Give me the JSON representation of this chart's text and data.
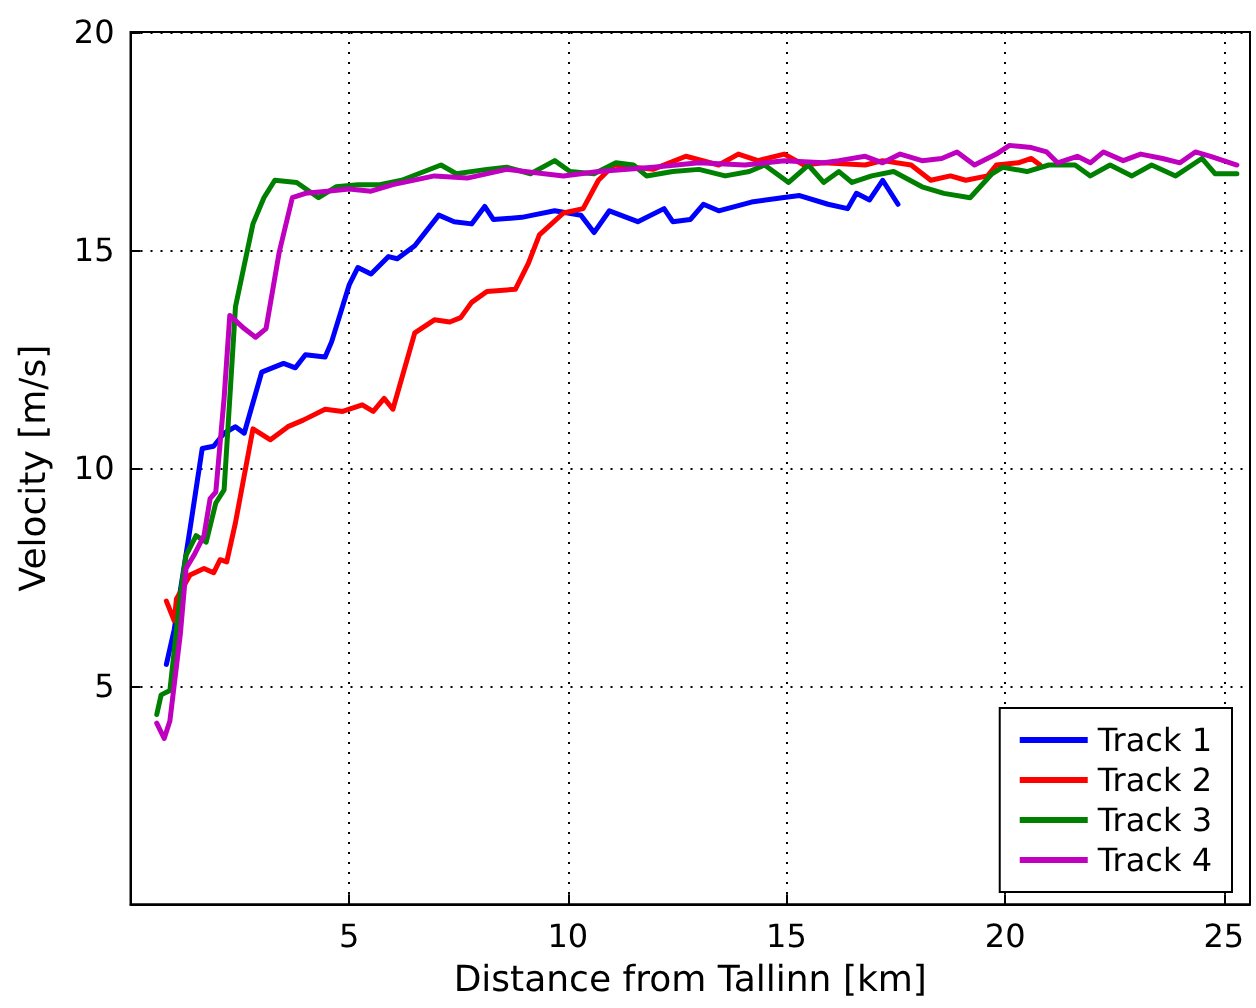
{
  "chart_data": {
    "type": "line",
    "xlabel": "Distance from Tallinn [km]",
    "ylabel": "Velocity [m/s]",
    "xlim": [
      0,
      25.6
    ],
    "xticks": [
      5,
      10,
      15,
      20,
      25
    ],
    "ylim": [
      0,
      20
    ],
    "yticks": [
      5,
      10,
      15,
      20
    ],
    "grid": true,
    "legend": "bottom right",
    "marker": "none",
    "line_style": "solid",
    "series": [
      {
        "name": "Track 1",
        "color": "#0000ff",
        "x": [
          0.82,
          1.0,
          1.36,
          1.64,
          1.9,
          2.14,
          2.4,
          2.6,
          3.0,
          3.5,
          3.77,
          4.0,
          4.45,
          4.6,
          5.0,
          5.2,
          5.5,
          5.9,
          6.1,
          6.5,
          7.05,
          7.4,
          7.8,
          8.1,
          8.3,
          8.95,
          9.2,
          9.7,
          10.3,
          10.6,
          10.95,
          11.6,
          12.2,
          12.4,
          12.8,
          13.1,
          13.45,
          14.2,
          14.9,
          15.3,
          15.95,
          16.4,
          16.6,
          16.9,
          17.2,
          17.55
        ],
        "values": [
          5.5,
          6.3,
          8.6,
          10.45,
          10.5,
          10.8,
          10.95,
          10.8,
          12.2,
          12.4,
          12.3,
          12.6,
          12.55,
          12.9,
          14.2,
          14.6,
          14.45,
          14.85,
          14.8,
          15.1,
          15.8,
          15.65,
          15.6,
          16.0,
          15.7,
          15.75,
          15.8,
          15.9,
          15.8,
          15.4,
          15.9,
          15.65,
          15.95,
          15.65,
          15.7,
          16.05,
          15.9,
          16.1,
          16.2,
          16.25,
          16.05,
          15.95,
          16.3,
          16.15,
          16.6,
          16.05
        ]
      },
      {
        "name": "Track 2",
        "color": "#ff0000",
        "x": [
          0.82,
          1.0,
          1.05,
          1.36,
          1.68,
          1.9,
          2.05,
          2.2,
          2.4,
          2.8,
          3.2,
          3.6,
          3.95,
          4.45,
          4.85,
          5.3,
          5.55,
          5.8,
          6.0,
          6.5,
          6.95,
          7.3,
          7.55,
          7.8,
          8.15,
          8.8,
          9.1,
          9.35,
          9.9,
          10.35,
          10.7,
          11.05,
          11.95,
          12.7,
          13.45,
          13.9,
          14.35,
          14.95,
          15.4,
          15.85,
          16.8,
          17.2,
          17.85,
          18.3,
          18.75,
          19.1,
          19.6,
          19.8,
          20.3,
          20.6,
          20.8
        ],
        "values": [
          6.95,
          6.5,
          7.0,
          7.55,
          7.7,
          7.6,
          7.9,
          7.85,
          8.75,
          10.9,
          10.65,
          10.95,
          11.1,
          11.35,
          11.3,
          11.45,
          11.3,
          11.6,
          11.35,
          13.1,
          13.4,
          13.35,
          13.45,
          13.8,
          14.05,
          14.1,
          14.7,
          15.35,
          15.85,
          15.95,
          16.6,
          16.95,
          16.85,
          17.15,
          16.95,
          17.2,
          17.05,
          17.2,
          16.95,
          17.0,
          16.95,
          17.05,
          16.95,
          16.6,
          16.7,
          16.6,
          16.7,
          16.95,
          17.0,
          17.1,
          16.95
        ]
      },
      {
        "name": "Track 3",
        "color": "#008000",
        "x": [
          0.6,
          0.7,
          0.9,
          1.14,
          1.27,
          1.5,
          1.73,
          1.95,
          2.14,
          2.27,
          2.4,
          2.8,
          3.05,
          3.3,
          3.8,
          4.3,
          4.7,
          5.2,
          5.7,
          6.2,
          7.1,
          7.45,
          8.15,
          8.6,
          9.15,
          9.7,
          10.05,
          10.6,
          11.1,
          11.5,
          11.8,
          12.4,
          13.0,
          13.6,
          14.15,
          14.5,
          15.05,
          15.5,
          15.85,
          16.2,
          16.5,
          16.95,
          17.45,
          18.1,
          18.6,
          19.2,
          19.7,
          19.95,
          20.5,
          21.0,
          21.6,
          21.95,
          22.4,
          22.9,
          23.35,
          23.9,
          24.5,
          24.8,
          25.3
        ],
        "values": [
          4.35,
          4.8,
          4.9,
          7.1,
          8.0,
          8.45,
          8.3,
          9.2,
          9.5,
          11.6,
          13.7,
          15.6,
          16.2,
          16.6,
          16.55,
          16.2,
          16.45,
          16.5,
          16.5,
          16.6,
          16.95,
          16.75,
          16.85,
          16.9,
          16.75,
          17.05,
          16.8,
          16.75,
          17.0,
          16.95,
          16.7,
          16.8,
          16.85,
          16.7,
          16.8,
          16.95,
          16.55,
          16.95,
          16.55,
          16.8,
          16.55,
          16.7,
          16.8,
          16.45,
          16.3,
          16.2,
          16.75,
          16.9,
          16.8,
          16.95,
          16.95,
          16.7,
          16.95,
          16.7,
          16.95,
          16.7,
          17.1,
          16.75,
          16.75
        ]
      },
      {
        "name": "Track 4",
        "color": "#bf00bf",
        "x": [
          0.6,
          0.77,
          0.9,
          1.14,
          1.27,
          1.45,
          1.68,
          1.82,
          1.95,
          2.14,
          2.27,
          2.6,
          2.86,
          3.1,
          3.4,
          3.7,
          4.0,
          4.5,
          5.0,
          5.5,
          6.0,
          6.95,
          7.7,
          8.6,
          9.9,
          10.7,
          11.95,
          13.0,
          14.05,
          14.95,
          15.85,
          16.2,
          16.8,
          17.2,
          17.6,
          18.1,
          18.55,
          18.9,
          19.3,
          19.8,
          20.1,
          20.6,
          20.95,
          21.2,
          21.65,
          21.95,
          22.25,
          22.7,
          23.1,
          23.6,
          24.0,
          24.35,
          24.7,
          25.3
        ],
        "values": [
          4.15,
          3.8,
          4.2,
          6.2,
          7.7,
          8.0,
          8.45,
          9.3,
          9.45,
          11.6,
          13.5,
          13.2,
          13.0,
          13.2,
          14.95,
          16.2,
          16.3,
          16.35,
          16.4,
          16.35,
          16.5,
          16.7,
          16.65,
          16.85,
          16.7,
          16.8,
          16.9,
          17.0,
          16.95,
          17.05,
          17.0,
          17.05,
          17.15,
          17.0,
          17.2,
          17.05,
          17.1,
          17.25,
          16.95,
          17.2,
          17.4,
          17.35,
          17.25,
          17.0,
          17.15,
          17.0,
          17.25,
          17.05,
          17.2,
          17.1,
          17.0,
          17.25,
          17.15,
          16.95
        ]
      }
    ]
  }
}
